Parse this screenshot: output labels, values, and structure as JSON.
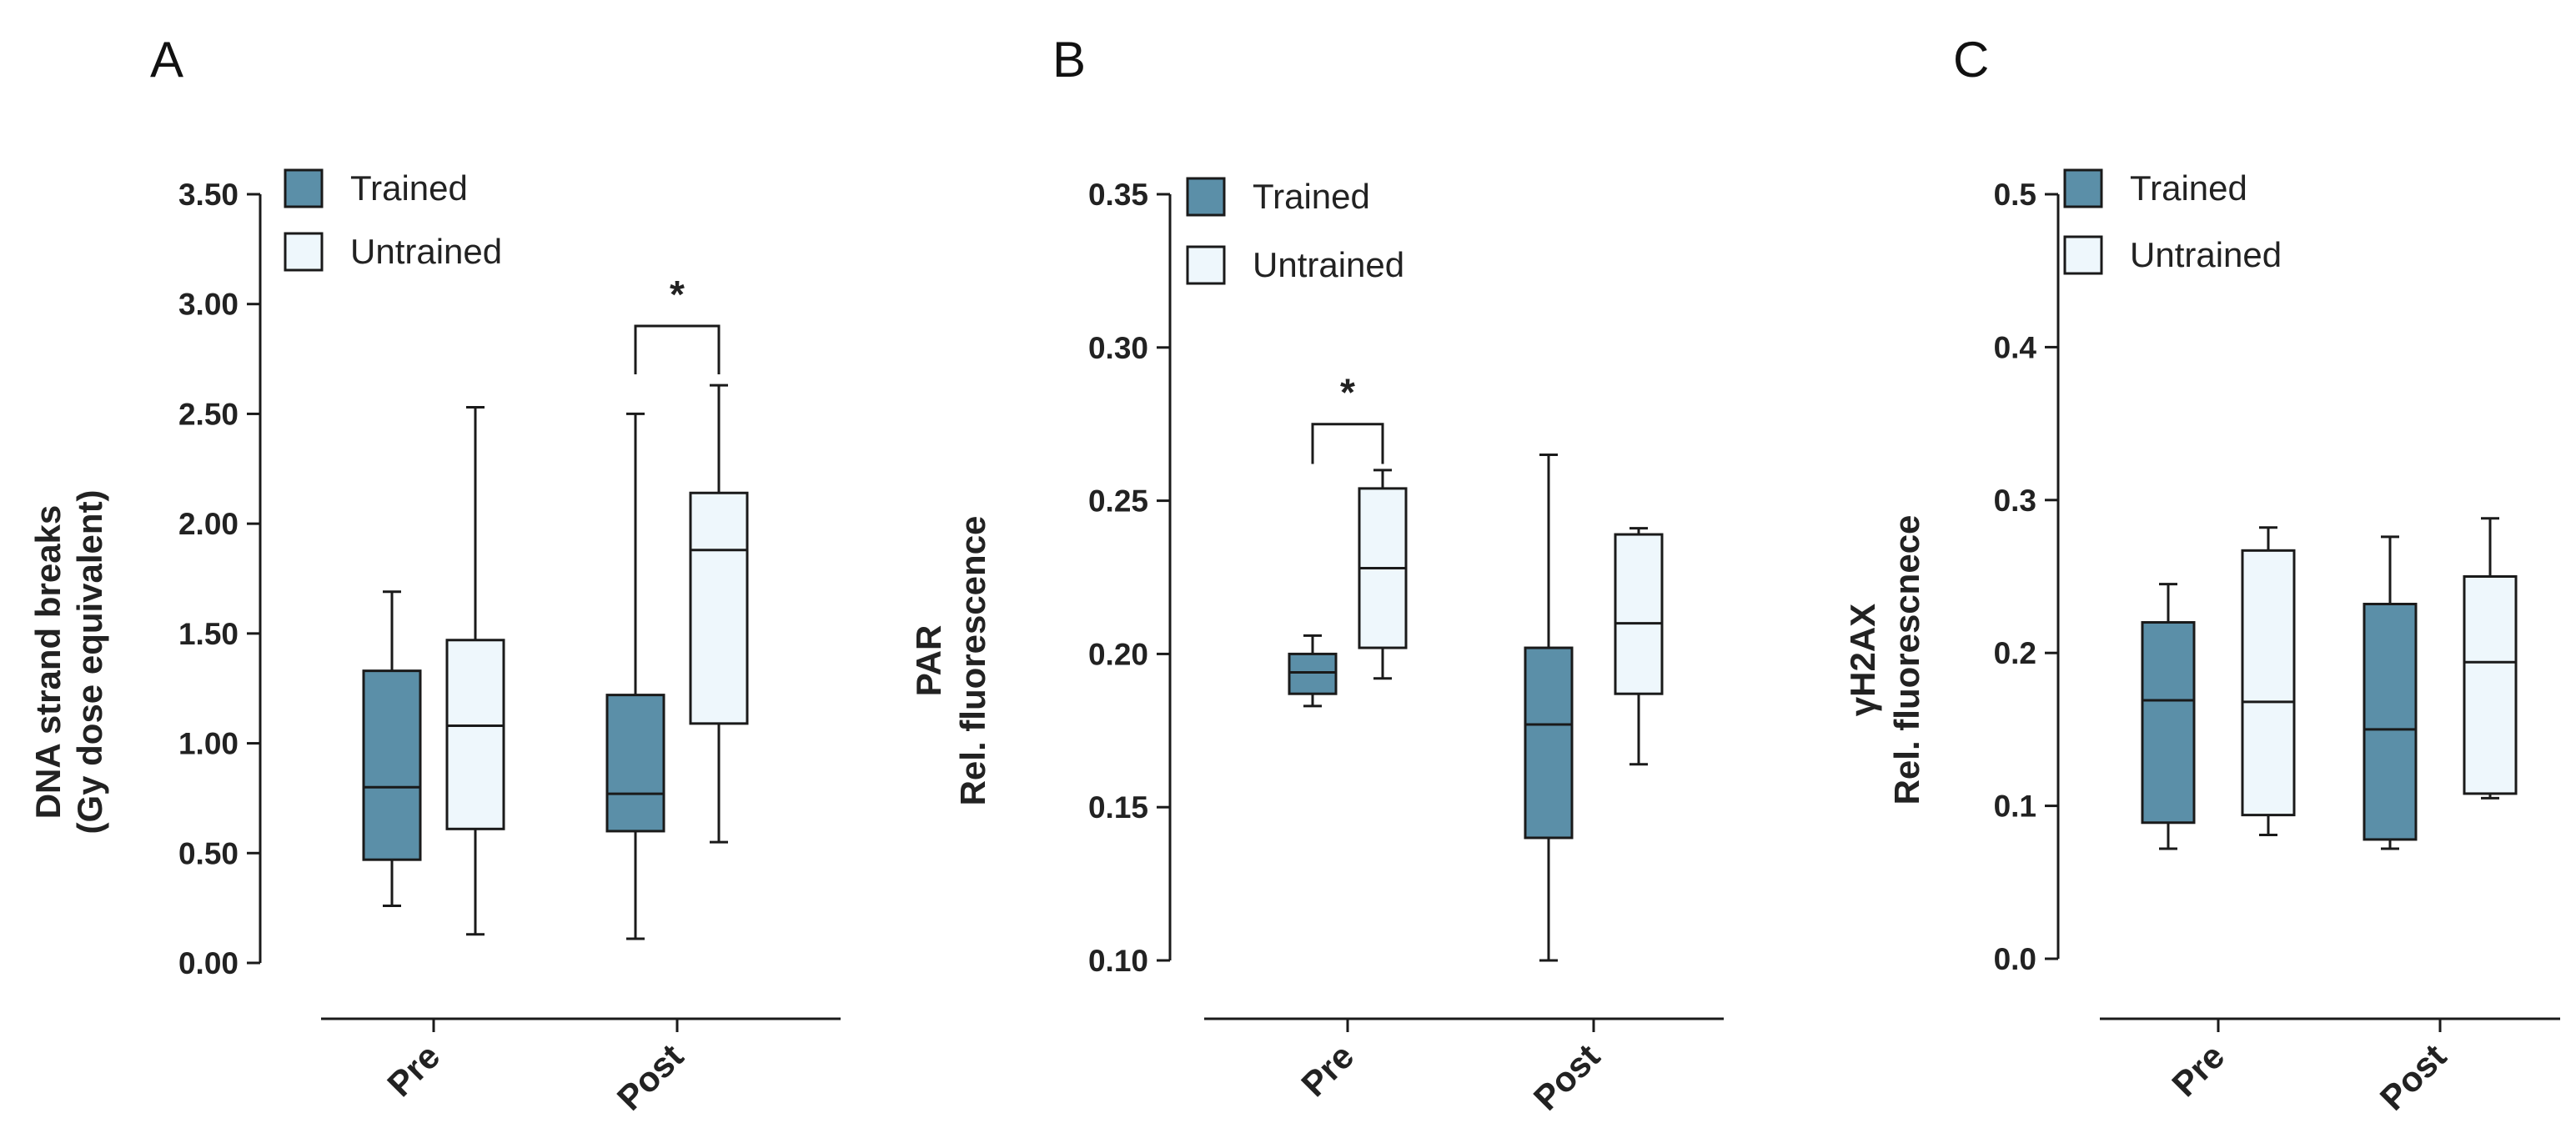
{
  "colors": {
    "trained": "#5b8fa8",
    "untrained": "#eef7fc",
    "stroke": "#1a1a1a"
  },
  "chart_data": [
    {
      "type": "box",
      "panel": "A",
      "ylabel_lines": [
        "DNA strand breaks",
        "(Gy dose equivalent)"
      ],
      "ylim": [
        0,
        3.5
      ],
      "yticks": [
        0,
        0.5,
        1.0,
        1.5,
        2.0,
        2.5,
        3.0,
        3.5
      ],
      "ytick_labels": [
        "0.00",
        "0.50",
        "1.00",
        "1.50",
        "2.00",
        "2.50",
        "3.00",
        "3.50"
      ],
      "categories": [
        "Pre",
        "Post"
      ],
      "legend": [
        "Trained",
        "Untrained"
      ],
      "series": [
        {
          "name": "Trained",
          "boxes": [
            {
              "min": 0.26,
              "q1": 0.47,
              "median": 0.8,
              "q3": 1.33,
              "max": 1.69
            },
            {
              "min": 0.11,
              "q1": 0.6,
              "median": 0.77,
              "q3": 1.22,
              "max": 2.5
            }
          ]
        },
        {
          "name": "Untrained",
          "boxes": [
            {
              "min": 0.13,
              "q1": 0.61,
              "median": 1.08,
              "q3": 1.47,
              "max": 2.53
            },
            {
              "min": 0.55,
              "q1": 1.09,
              "median": 1.88,
              "q3": 2.14,
              "max": 2.63
            }
          ]
        }
      ],
      "significance": [
        {
          "category_index": 1,
          "label": "*",
          "bracket_y": 2.9,
          "drop_y": 2.68
        }
      ]
    },
    {
      "type": "box",
      "panel": "B",
      "ylabel_lines": [
        "PAR",
        "Rel. fluorescence"
      ],
      "ylim": [
        0.1,
        0.35
      ],
      "yticks": [
        0.1,
        0.15,
        0.2,
        0.25,
        0.3,
        0.35
      ],
      "ytick_labels": [
        "0.10",
        "0.15",
        "0.20",
        "0.25",
        "0.30",
        "0.35"
      ],
      "categories": [
        "Pre",
        "Post"
      ],
      "legend": [
        "Trained",
        "Untrained"
      ],
      "series": [
        {
          "name": "Trained",
          "boxes": [
            {
              "min": 0.183,
              "q1": 0.187,
              "median": 0.194,
              "q3": 0.2,
              "max": 0.206
            },
            {
              "min": 0.1,
              "q1": 0.14,
              "median": 0.177,
              "q3": 0.202,
              "max": 0.265
            }
          ]
        },
        {
          "name": "Untrained",
          "boxes": [
            {
              "min": 0.192,
              "q1": 0.202,
              "median": 0.228,
              "q3": 0.254,
              "max": 0.26
            },
            {
              "min": 0.164,
              "q1": 0.187,
              "median": 0.21,
              "q3": 0.239,
              "max": 0.241
            }
          ]
        }
      ],
      "significance": [
        {
          "category_index": 0,
          "label": "*",
          "bracket_y": 0.275,
          "drop_y": 0.262
        }
      ]
    },
    {
      "type": "box",
      "panel": "C",
      "ylabel_lines": [
        "γH2AX",
        "Rel. fluorescnece"
      ],
      "ylim": [
        0,
        0.5
      ],
      "yticks": [
        0,
        0.1,
        0.2,
        0.3,
        0.4,
        0.5
      ],
      "ytick_labels": [
        "0.0",
        "0.1",
        "0.2",
        "0.3",
        "0.4",
        "0.5"
      ],
      "categories": [
        "Pre",
        "Post"
      ],
      "legend": [
        "Trained",
        "Untrained"
      ],
      "series": [
        {
          "name": "Trained",
          "boxes": [
            {
              "min": 0.072,
              "q1": 0.089,
              "median": 0.169,
              "q3": 0.22,
              "max": 0.245
            },
            {
              "min": 0.072,
              "q1": 0.078,
              "median": 0.15,
              "q3": 0.232,
              "max": 0.276
            }
          ]
        },
        {
          "name": "Untrained",
          "boxes": [
            {
              "min": 0.081,
              "q1": 0.094,
              "median": 0.168,
              "q3": 0.267,
              "max": 0.282
            },
            {
              "min": 0.105,
              "q1": 0.108,
              "median": 0.194,
              "q3": 0.25,
              "max": 0.288
            }
          ]
        }
      ],
      "significance": []
    }
  ]
}
